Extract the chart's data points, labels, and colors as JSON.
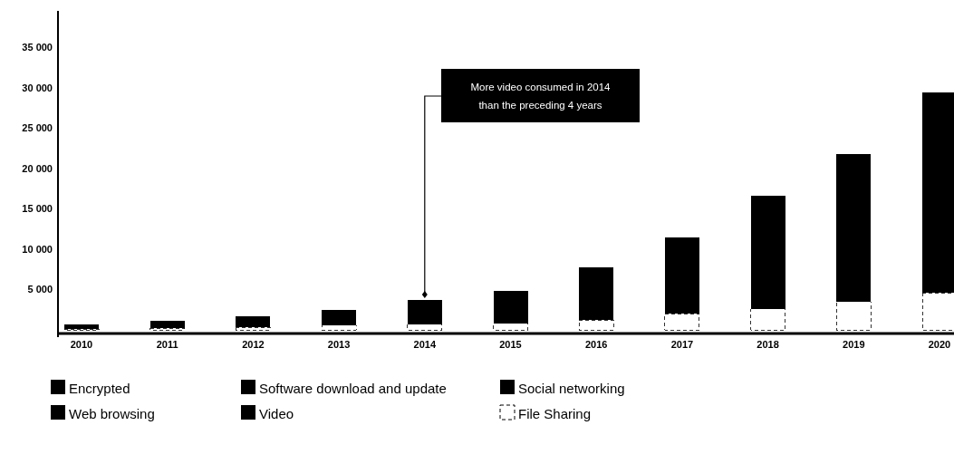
{
  "chart_data": {
    "type": "bar",
    "stacked": true,
    "categories": [
      "2010",
      "2011",
      "2012",
      "2013",
      "2014",
      "2015",
      "2016",
      "2017",
      "2018",
      "2019",
      "2020"
    ],
    "series": [
      {
        "name": "File Sharing",
        "color": "#ffffff",
        "values": [
          100,
          200,
          300,
          600,
          700,
          800,
          1200,
          2000,
          2600,
          3500,
          4600
        ]
      },
      {
        "name": "Web browsing",
        "color": "#000000",
        "values": [
          200,
          200,
          400,
          500,
          600,
          700,
          1500,
          2000,
          3000,
          2900,
          4600
        ]
      },
      {
        "name": "Software download and update",
        "color": "#000000",
        "values": [
          100,
          100,
          100,
          200,
          200,
          300,
          400,
          500,
          600,
          700,
          800
        ]
      },
      {
        "name": "Social networking",
        "color": "#000000",
        "values": [
          100,
          100,
          100,
          200,
          200,
          300,
          400,
          500,
          600,
          700,
          800
        ]
      },
      {
        "name": "Encrypted",
        "color": "#000000",
        "values": [
          100,
          100,
          200,
          300,
          400,
          500,
          700,
          1000,
          1400,
          1800,
          2400
        ]
      },
      {
        "name": "Video",
        "color": "#000000",
        "values": [
          100,
          400,
          600,
          700,
          1600,
          2200,
          3500,
          5500,
          8400,
          12200,
          16200
        ]
      }
    ],
    "ylim": [
      0,
      39500
    ],
    "yticks": [
      {
        "value": 5000,
        "label": "5 000"
      },
      {
        "value": 10000,
        "label": "10 000"
      },
      {
        "value": 15000,
        "label": "15 000"
      },
      {
        "value": 20000,
        "label": "20 000"
      },
      {
        "value": 25000,
        "label": "25 000"
      },
      {
        "value": 30000,
        "label": "30 000"
      },
      {
        "value": 35000,
        "label": "35 000"
      }
    ],
    "annotations": [
      "More video consumed in 2014 than the preceding 4 years"
    ],
    "legend": "bottom left"
  }
}
